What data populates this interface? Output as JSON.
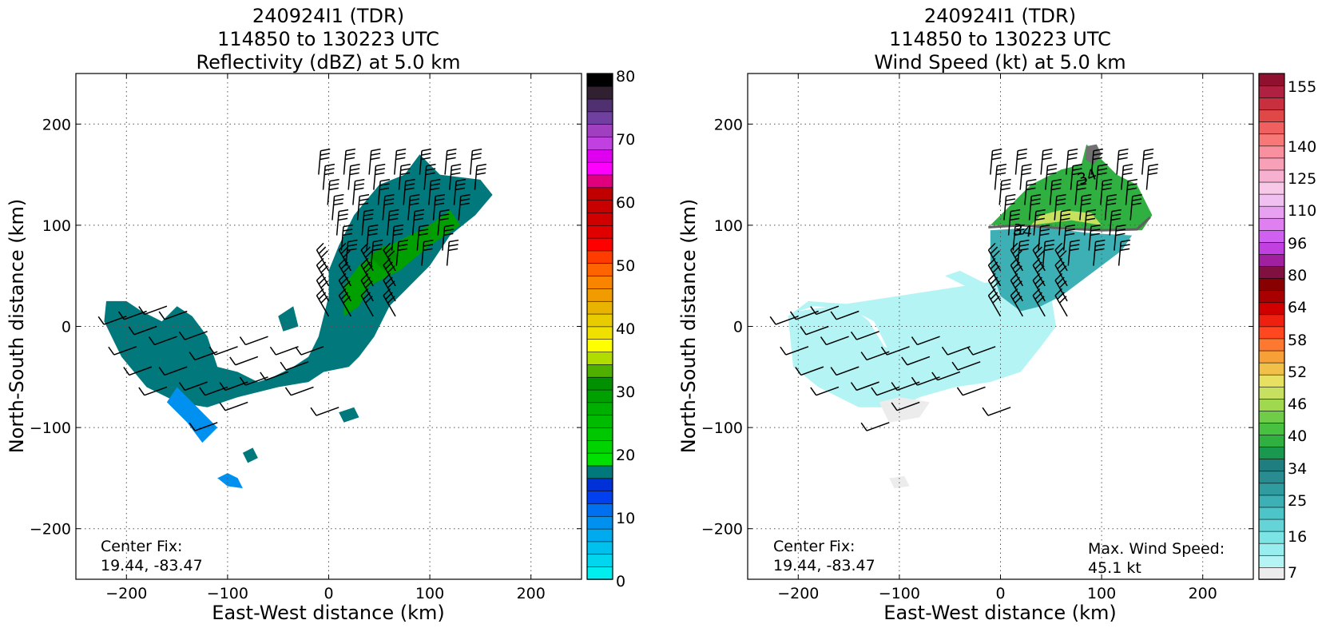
{
  "panels": [
    {
      "title_lines": [
        "240924I1 (TDR)",
        "114850 to 130223 UTC",
        "Reflectivity (dBZ) at 5.0 km"
      ],
      "xlabel": "East-West distance (km)",
      "ylabel": "North-South distance (km)",
      "center_fix": [
        "Center Fix:",
        "19.44, -83.47"
      ],
      "colorbar_labels": [
        "0",
        "10",
        "20",
        "30",
        "40",
        "50",
        "60",
        "70",
        "80"
      ]
    },
    {
      "title_lines": [
        "240924I1 (TDR)",
        "114850 to 130223 UTC",
        "Wind Speed (kt) at 5.0 km"
      ],
      "xlabel": "East-West distance (km)",
      "ylabel": "North-South distance (km)",
      "center_fix": [
        "Center Fix:",
        "19.44, -83.47"
      ],
      "max_wind": [
        "Max. Wind Speed:",
        "45.1 kt"
      ],
      "colorbar_labels": [
        "7",
        "16",
        "25",
        "34",
        "40",
        "46",
        "52",
        "58",
        "64",
        "80",
        "96",
        "110",
        "125",
        "140",
        "155"
      ],
      "contour_labels": [
        "34",
        "34"
      ]
    }
  ],
  "chart_data": [
    {
      "type": "heatmap",
      "variable": "Reflectivity (dBZ)",
      "altitude_km": 5.0,
      "xlim": [
        -250,
        250
      ],
      "ylim": [
        -250,
        250
      ],
      "xticks": [
        -200,
        -100,
        0,
        100,
        200
      ],
      "yticks": [
        -200,
        -100,
        0,
        100,
        200
      ],
      "grid": true,
      "colorbar": {
        "range": [
          0,
          80
        ],
        "step": 2.5,
        "ticks": [
          0,
          10,
          20,
          30,
          40,
          50,
          60,
          70,
          80
        ],
        "colors": [
          "#00eeee",
          "#00d6ee",
          "#00c0ee",
          "#00aaee",
          "#0090f0",
          "#0070f0",
          "#0040f0",
          "#0030d8",
          "#00787c",
          "#00e000",
          "#00d400",
          "#00c800",
          "#00bc00",
          "#00b000",
          "#00a000",
          "#009000",
          "#50b000",
          "#b0dc00",
          "#ffff00",
          "#f0e000",
          "#e8cc00",
          "#e8b400",
          "#f09c00",
          "#f88400",
          "#ff6400",
          "#ff3c00",
          "#ff0000",
          "#e00000",
          "#d00000",
          "#c80000",
          "#c00000",
          "#e0007e",
          "#ff00ff",
          "#e000f0",
          "#c040e0",
          "#a040c0",
          "#7040a0",
          "#503070",
          "#302030",
          "#000000"
        ]
      },
      "echo_regions": [
        {
          "level_dbz": 20,
          "polygon": [
            [
              -220,
              25
            ],
            [
              -200,
              25
            ],
            [
              -185,
              15
            ],
            [
              -165,
              5
            ],
            [
              -150,
              20
            ],
            [
              -135,
              10
            ],
            [
              -120,
              -10
            ],
            [
              -110,
              -40
            ],
            [
              -90,
              -45
            ],
            [
              -70,
              -55
            ],
            [
              -55,
              -50
            ],
            [
              -35,
              -40
            ],
            [
              -20,
              -30
            ],
            [
              -10,
              -10
            ],
            [
              -5,
              10
            ],
            [
              0,
              30
            ],
            [
              0,
              55
            ],
            [
              10,
              80
            ],
            [
              25,
              110
            ],
            [
              50,
              140
            ],
            [
              75,
              150
            ],
            [
              90,
              170
            ],
            [
              110,
              150
            ],
            [
              150,
              145
            ],
            [
              162,
              130
            ],
            [
              145,
              110
            ],
            [
              120,
              90
            ],
            [
              100,
              60
            ],
            [
              80,
              40
            ],
            [
              60,
              20
            ],
            [
              45,
              -10
            ],
            [
              30,
              -30
            ],
            [
              20,
              -40
            ],
            [
              -5,
              -45
            ],
            [
              -20,
              -55
            ],
            [
              -50,
              -60
            ],
            [
              -90,
              -70
            ],
            [
              -120,
              -80
            ],
            [
              -150,
              -75
            ],
            [
              -180,
              -60
            ],
            [
              -205,
              -30
            ],
            [
              -222,
              5
            ]
          ]
        },
        {
          "level_dbz": 12,
          "polygon": [
            [
              -150,
              -60
            ],
            [
              -130,
              -80
            ],
            [
              -110,
              -100
            ],
            [
              -125,
              -115
            ],
            [
              -140,
              -95
            ],
            [
              -160,
              -75
            ]
          ]
        },
        {
          "level_dbz": 12,
          "polygon": [
            [
              -100,
              -145
            ],
            [
              -90,
              -150
            ],
            [
              -85,
              -160
            ],
            [
              -100,
              -158
            ],
            [
              -110,
              -150
            ]
          ]
        },
        {
          "level_dbz": 22,
          "polygon": [
            [
              -85,
              -125
            ],
            [
              -75,
              -120
            ],
            [
              -70,
              -130
            ],
            [
              -80,
              -135
            ]
          ]
        },
        {
          "level_dbz": 22,
          "polygon": [
            [
              10,
              -85
            ],
            [
              25,
              -80
            ],
            [
              30,
              -90
            ],
            [
              15,
              -95
            ]
          ]
        },
        {
          "level_dbz": 22,
          "polygon": [
            [
              -50,
              10
            ],
            [
              -35,
              20
            ],
            [
              -30,
              0
            ],
            [
              -45,
              -5
            ]
          ]
        },
        {
          "level_dbz": 35,
          "polygon": [
            [
              30,
              60
            ],
            [
              60,
              80
            ],
            [
              100,
              100
            ],
            [
              120,
              115
            ],
            [
              130,
              100
            ],
            [
              100,
              80
            ],
            [
              70,
              55
            ],
            [
              40,
              40
            ],
            [
              30,
              20
            ],
            [
              15,
              10
            ],
            [
              15,
              40
            ]
          ]
        },
        {
          "level_dbz": 39,
          "polygon": [
            [
              40,
              70
            ],
            [
              55,
              80
            ],
            [
              70,
              70
            ],
            [
              55,
              55
            ]
          ]
        }
      ]
    },
    {
      "type": "heatmap",
      "variable": "Wind Speed (kt)",
      "altitude_km": 5.0,
      "xlim": [
        -250,
        250
      ],
      "ylim": [
        -250,
        250
      ],
      "xticks": [
        -200,
        -100,
        0,
        100,
        200
      ],
      "yticks": [
        -200,
        -100,
        0,
        100,
        200
      ],
      "grid": true,
      "max_wind_speed_kt": 45.1,
      "contour_kt": 34,
      "colorbar": {
        "ticks": [
          7,
          16,
          25,
          34,
          40,
          46,
          52,
          58,
          64,
          80,
          96,
          110,
          125,
          140,
          155
        ],
        "colors": [
          "#ececec",
          "#b4f4f4",
          "#98eeee",
          "#7ce4e4",
          "#64d4d8",
          "#4cc4c8",
          "#3cb0b4",
          "#309ca0",
          "#288c90",
          "#1e7e80",
          "#1a9850",
          "#2fb040",
          "#48c040",
          "#70cc48",
          "#a0d850",
          "#c8e060",
          "#e8e060",
          "#f0c048",
          "#f8a038",
          "#ff7830",
          "#ff4820",
          "#f02010",
          "#d00000",
          "#a80000",
          "#880000",
          "#801040",
          "#a020a0",
          "#c040e0",
          "#d060f0",
          "#e080f0",
          "#e8a0f0",
          "#f0c0f0",
          "#f8c8e8",
          "#f8b0d0",
          "#f8a0b8",
          "#f890a0",
          "#f87878",
          "#f06060",
          "#e04848",
          "#c83040",
          "#b02040",
          "#901030"
        ]
      },
      "wind_regions": [
        {
          "speed_kt": 10,
          "polygon": [
            [
              -200,
              15
            ],
            [
              -185,
              20
            ],
            [
              -150,
              18
            ],
            [
              -125,
              5
            ],
            [
              -110,
              -25
            ],
            [
              -95,
              -40
            ],
            [
              -70,
              -45
            ],
            [
              -40,
              -40
            ],
            [
              -15,
              -35
            ],
            [
              5,
              -20
            ],
            [
              15,
              0
            ],
            [
              5,
              20
            ],
            [
              -10,
              40
            ],
            [
              -40,
              55
            ],
            [
              -55,
              50
            ],
            [
              -35,
              40
            ],
            [
              -20,
              25
            ],
            [
              -30,
              10
            ],
            [
              -40,
              -5
            ],
            [
              -60,
              -25
            ],
            [
              -90,
              -30
            ],
            [
              -115,
              -20
            ],
            [
              -130,
              5
            ],
            [
              -150,
              22
            ],
            [
              -190,
              25
            ],
            [
              -210,
              10
            ],
            [
              -205,
              -40
            ],
            [
              -180,
              -60
            ],
            [
              -140,
              -80
            ],
            [
              -100,
              -80
            ],
            [
              -80,
              -70
            ],
            [
              -45,
              -60
            ],
            [
              -10,
              -55
            ],
            [
              20,
              -45
            ],
            [
              40,
              -20
            ],
            [
              55,
              0
            ],
            [
              50,
              30
            ],
            [
              30,
              50
            ]
          ]
        },
        {
          "speed_kt": 7,
          "polygon": [
            [
              -120,
              -75
            ],
            [
              -100,
              -70
            ],
            [
              -70,
              -75
            ],
            [
              -80,
              -90
            ],
            [
              -110,
              -95
            ]
          ]
        },
        {
          "speed_kt": 7,
          "polygon": [
            [
              -110,
              -150
            ],
            [
              -95,
              -148
            ],
            [
              -90,
              -158
            ],
            [
              -105,
              -160
            ]
          ]
        },
        {
          "speed_kt": 26,
          "polygon": [
            [
              -10,
              95
            ],
            [
              40,
              98
            ],
            [
              90,
              92
            ],
            [
              130,
              90
            ],
            [
              120,
              75
            ],
            [
              100,
              60
            ],
            [
              80,
              45
            ],
            [
              60,
              30
            ],
            [
              40,
              20
            ],
            [
              20,
              15
            ],
            [
              0,
              30
            ],
            [
              -10,
              60
            ]
          ]
        },
        {
          "speed_kt": 38,
          "polygon": [
            [
              -10,
              100
            ],
            [
              30,
              100
            ],
            [
              80,
              95
            ],
            [
              140,
              95
            ],
            [
              150,
              110
            ],
            [
              135,
              140
            ],
            [
              115,
              150
            ],
            [
              95,
              170
            ],
            [
              85,
              180
            ],
            [
              80,
              160
            ],
            [
              60,
              155
            ],
            [
              30,
              140
            ],
            [
              10,
              120
            ]
          ]
        },
        {
          "speed_kt": 45,
          "polygon": [
            [
              30,
              100
            ],
            [
              70,
              105
            ],
            [
              100,
              100
            ],
            [
              90,
              112
            ],
            [
              60,
              115
            ],
            [
              40,
              110
            ]
          ]
        }
      ]
    }
  ]
}
